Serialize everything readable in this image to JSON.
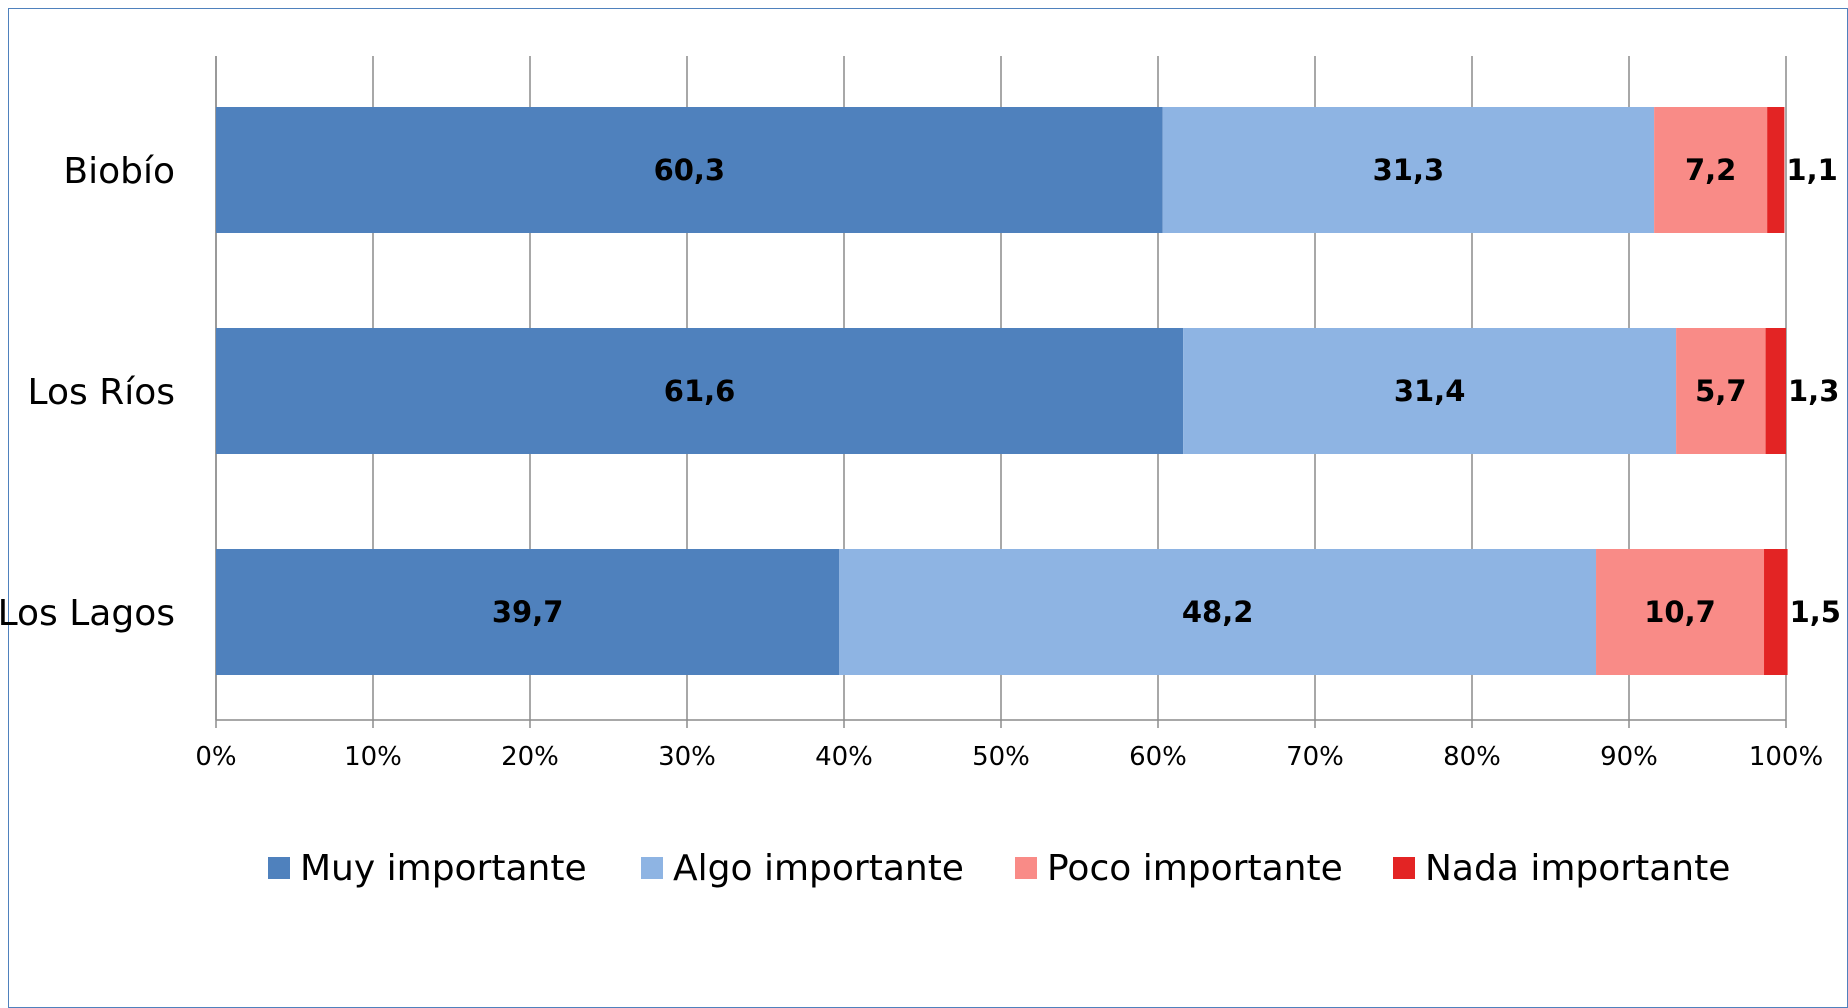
{
  "chart_data": {
    "type": "bar",
    "orientation": "horizontal",
    "stacked": "100%",
    "categories": [
      "Biobío",
      "Los Ríos",
      "Los Lagos"
    ],
    "series": [
      {
        "name": "Muy importante",
        "color": "#4f81bd",
        "values": [
          60.3,
          61.6,
          39.7
        ],
        "labels": [
          "60,3",
          "61,6",
          "39,7"
        ]
      },
      {
        "name": "Algo importante",
        "color": "#8eb4e3",
        "values": [
          31.3,
          31.4,
          48.2
        ],
        "labels": [
          "31,3",
          "31,4",
          "48,2"
        ]
      },
      {
        "name": "Poco importante",
        "color": "#f98b87",
        "values": [
          7.2,
          5.7,
          10.7
        ],
        "labels": [
          "7,2",
          "5,7",
          "10,7"
        ]
      },
      {
        "name": "Nada importante",
        "color": "#e32424",
        "values": [
          1.1,
          1.3,
          1.5
        ],
        "labels": [
          "1,1",
          "1,3",
          "1,5"
        ]
      }
    ],
    "x_ticks": [
      "0%",
      "10%",
      "20%",
      "30%",
      "40%",
      "50%",
      "60%",
      "70%",
      "80%",
      "90%",
      "100%"
    ],
    "xlim": [
      0,
      100
    ],
    "grid": "vertical",
    "legend_position": "bottom"
  }
}
